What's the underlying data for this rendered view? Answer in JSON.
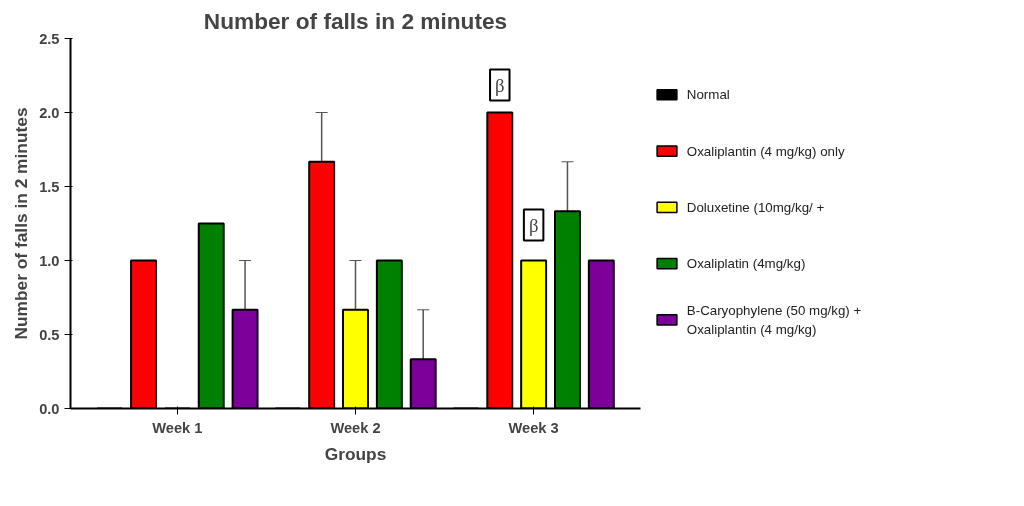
{
  "chart_data": {
    "type": "bar",
    "title": "Number of falls in 2 minutes",
    "xlabel": "Groups",
    "ylabel": "Number of falls in 2 minutes",
    "categories": [
      "Week 1",
      "Week 2",
      "Week 3"
    ],
    "series": [
      {
        "name": "Normal",
        "color": "#000000",
        "values": [
          0,
          0,
          0
        ]
      },
      {
        "name": "Oxaliplantin (4 mg/kg) only",
        "color": "#ff0000",
        "values": [
          1.0,
          1.667,
          2.0
        ],
        "errors": [
          null,
          [
            1.667,
            2.0
          ],
          null
        ]
      },
      {
        "name": "Doluxetine (10mg/kg/ +",
        "color": "#ffff00",
        "values": [
          0,
          0.667,
          1.0
        ],
        "errors": [
          null,
          [
            0.667,
            1.0
          ],
          null
        ]
      },
      {
        "name": "Oxaliplatin (4mg/kg)",
        "color": "#008000",
        "values": [
          1.25,
          1.0,
          1.333
        ],
        "errors": [
          null,
          null,
          [
            1.333,
            1.667
          ]
        ]
      },
      {
        "name": "B-Caryophylene (50 mg/kg) + Oxaliplantin (4 mg/kg)",
        "color": "#7b0099",
        "values": [
          0.667,
          0.333,
          1.0
        ],
        "errors": [
          [
            0.667,
            1.0
          ],
          [
            0.333,
            0.667
          ],
          null
        ]
      }
    ],
    "annotations": [
      "β",
      "β"
    ],
    "ylim": [
      0,
      2.5
    ],
    "yticks": [
      {
        "value": 0,
        "label": "0.0"
      },
      {
        "value": 0.5,
        "label": "0.5"
      },
      {
        "value": 1,
        "label": "1.0"
      },
      {
        "value": 1.5,
        "label": "1.5"
      },
      {
        "value": 2,
        "label": "2.0"
      },
      {
        "value": 2.5,
        "label": "2.5"
      }
    ],
    "grid": false,
    "legend": "right"
  }
}
